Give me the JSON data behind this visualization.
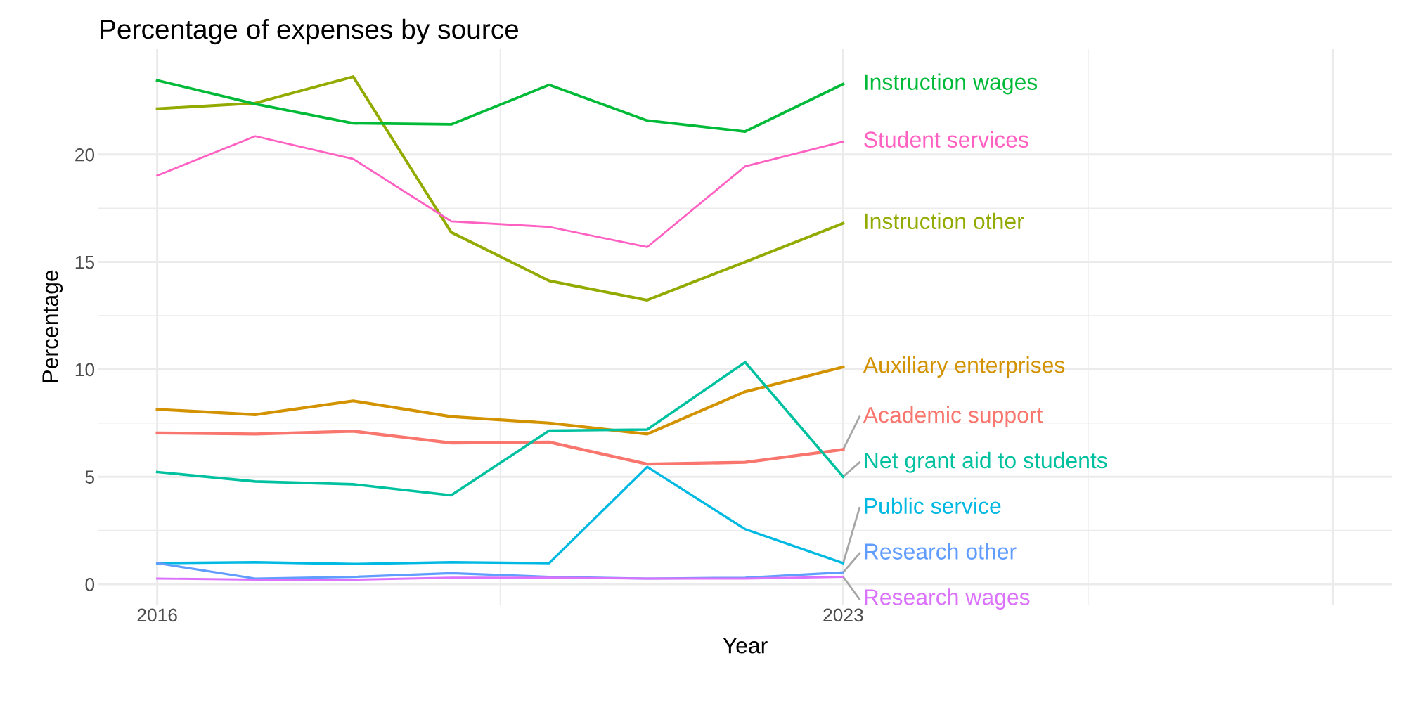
{
  "chart_data": {
    "type": "line",
    "title": "Percentage of expenses by source",
    "xlabel": "Year",
    "ylabel": "Percentage",
    "x": [
      2016,
      2017,
      2018,
      2019,
      2020,
      2021,
      2022,
      2023
    ],
    "xlim": [
      2015.4,
      2028.6
    ],
    "xticks": [
      2016,
      2023,
      {
        "value": 2028,
        "label": null
      }
    ],
    "ylim": [
      -0.95,
      24.9
    ],
    "yticks": [
      0,
      5,
      10,
      15,
      20
    ],
    "grid": true,
    "legend": false,
    "series": [
      {
        "name": "Academic support",
        "color": "#f8766d",
        "values": [
          7.04,
          6.99,
          7.12,
          6.57,
          6.61,
          5.59,
          5.67,
          6.27
        ]
      },
      {
        "name": "Auxiliary enterprises",
        "color": "#d39200",
        "values": [
          8.14,
          7.89,
          8.53,
          7.8,
          7.5,
          6.99,
          8.96,
          10.11
        ]
      },
      {
        "name": "Instruction other",
        "color": "#93aa00",
        "values": [
          22.13,
          22.39,
          23.62,
          16.38,
          14.12,
          13.22,
          15.0,
          16.8
        ]
      },
      {
        "name": "Instruction wages",
        "color": "#00ba38",
        "values": [
          23.45,
          22.35,
          21.45,
          21.4,
          23.24,
          21.58,
          21.07,
          23.28
        ]
      },
      {
        "name": "Net grant aid to students",
        "color": "#00c19f",
        "values": [
          5.22,
          4.78,
          4.65,
          4.14,
          7.15,
          7.2,
          10.33,
          5.0
        ]
      },
      {
        "name": "Public service",
        "color": "#00b9e3",
        "values": [
          0.98,
          1.02,
          0.94,
          1.02,
          0.98,
          5.46,
          2.56,
          0.98
        ]
      },
      {
        "name": "Research other",
        "color": "#619cff",
        "values": [
          0.98,
          0.26,
          0.34,
          0.51,
          0.34,
          0.26,
          0.3,
          0.55
        ]
      },
      {
        "name": "Research wages",
        "color": "#db72fb",
        "values": [
          0.26,
          0.21,
          0.21,
          0.3,
          0.3,
          0.26,
          0.26,
          0.34
        ]
      },
      {
        "name": "Student services",
        "color": "#ff61c3",
        "values": [
          19.02,
          20.85,
          19.79,
          16.89,
          16.63,
          15.69,
          19.45,
          20.6
        ]
      }
    ]
  }
}
